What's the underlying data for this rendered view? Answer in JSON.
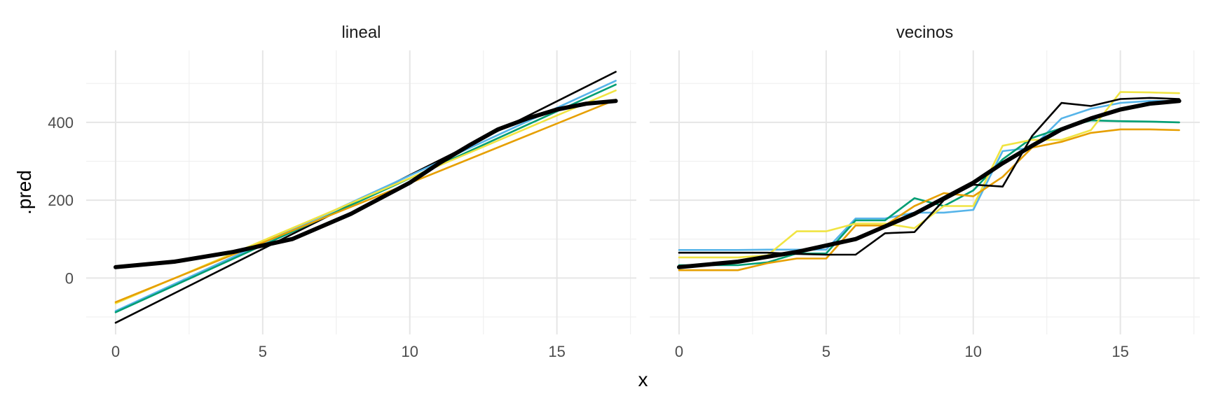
{
  "chart_data": {
    "type": "line",
    "xlabel": "x",
    "ylabel": ".pred",
    "xlim": [
      -1,
      17.7
    ],
    "ylim": [
      -145,
      585
    ],
    "x_ticks": [
      0,
      5,
      10,
      15
    ],
    "y_ticks": [
      0,
      200,
      400
    ],
    "grid": true,
    "legend": "none",
    "colors": {
      "black": "#000000",
      "blue": "#56b4e9",
      "green": "#009e73",
      "yellow": "#f0e442",
      "orange": "#e69f00"
    },
    "panels": [
      {
        "title": "lineal",
        "series": [
          {
            "color": "#000000",
            "width": "thin",
            "x": [
              0,
              17
            ],
            "y": [
              -115,
              530
            ]
          },
          {
            "color": "#56b4e9",
            "width": "thin",
            "x": [
              0,
              17
            ],
            "y": [
              -85,
              507
            ]
          },
          {
            "color": "#009e73",
            "width": "thin",
            "x": [
              0,
              17
            ],
            "y": [
              -88,
              497
            ]
          },
          {
            "color": "#f0e442",
            "width": "thin",
            "x": [
              0,
              17
            ],
            "y": [
              -65,
              482
            ]
          },
          {
            "color": "#e69f00",
            "width": "thin",
            "x": [
              0,
              17
            ],
            "y": [
              -62,
              458
            ]
          },
          {
            "color": "#000000",
            "width": "thick",
            "x": [
              0,
              2,
              4,
              6,
              8,
              10,
              11,
              12,
              13,
              14,
              15,
              16,
              17
            ],
            "y": [
              28,
              42,
              67,
              100,
              165,
              245,
              295,
              340,
              382,
              410,
              433,
              448,
              455
            ]
          }
        ]
      },
      {
        "title": "vecinos",
        "series": [
          {
            "color": "#56b4e9",
            "width": "thin",
            "x": [
              0,
              1,
              2,
              3,
              4,
              5,
              6,
              7,
              8,
              9,
              10,
              11,
              12,
              13,
              14,
              15,
              16,
              17
            ],
            "y": [
              72,
              72,
              72,
              73,
              73,
              73,
              153,
              153,
              168,
              168,
              175,
              326,
              335,
              410,
              435,
              450,
              455,
              455
            ]
          },
          {
            "color": "#009e73",
            "width": "thin",
            "x": [
              0,
              1,
              2,
              3,
              4,
              5,
              6,
              7,
              8,
              9,
              10,
              11,
              12,
              13,
              14,
              15,
              16,
              17
            ],
            "y": [
              33,
              33,
              33,
              40,
              63,
              63,
              148,
              148,
              205,
              185,
              225,
              305,
              360,
              385,
              405,
              403,
              402,
              400
            ]
          },
          {
            "color": "#f0e442",
            "width": "thin",
            "x": [
              0,
              1,
              2,
              3,
              4,
              5,
              6,
              7,
              8,
              9,
              10,
              11,
              12,
              13,
              14,
              15,
              16,
              17
            ],
            "y": [
              53,
              53,
              53,
              58,
              120,
              120,
              140,
              140,
              128,
              185,
              185,
              340,
              355,
              355,
              380,
              478,
              477,
              475
            ]
          },
          {
            "color": "#e69f00",
            "width": "thin",
            "x": [
              0,
              1,
              2,
              3,
              4,
              5,
              6,
              7,
              8,
              9,
              10,
              11,
              12,
              13,
              14,
              15,
              16,
              17
            ],
            "y": [
              20,
              20,
              20,
              38,
              50,
              50,
              135,
              135,
              185,
              218,
              210,
              260,
              335,
              350,
              373,
              382,
              382,
              380
            ]
          },
          {
            "color": "#000000",
            "width": "thin",
            "x": [
              0,
              1,
              2,
              3,
              4,
              5,
              6,
              7,
              8,
              9,
              10,
              11,
              12,
              13,
              14,
              15,
              16,
              17
            ],
            "y": [
              65,
              65,
              65,
              65,
              62,
              60,
              60,
              115,
              118,
              200,
              240,
              235,
              365,
              450,
              442,
              460,
              463,
              460
            ]
          },
          {
            "color": "#000000",
            "width": "thick",
            "x": [
              0,
              2,
              4,
              6,
              8,
              10,
              11,
              12,
              13,
              14,
              15,
              16,
              17
            ],
            "y": [
              28,
              42,
              67,
              100,
              165,
              245,
              295,
              340,
              382,
              410,
              433,
              448,
              455
            ]
          }
        ]
      }
    ]
  }
}
